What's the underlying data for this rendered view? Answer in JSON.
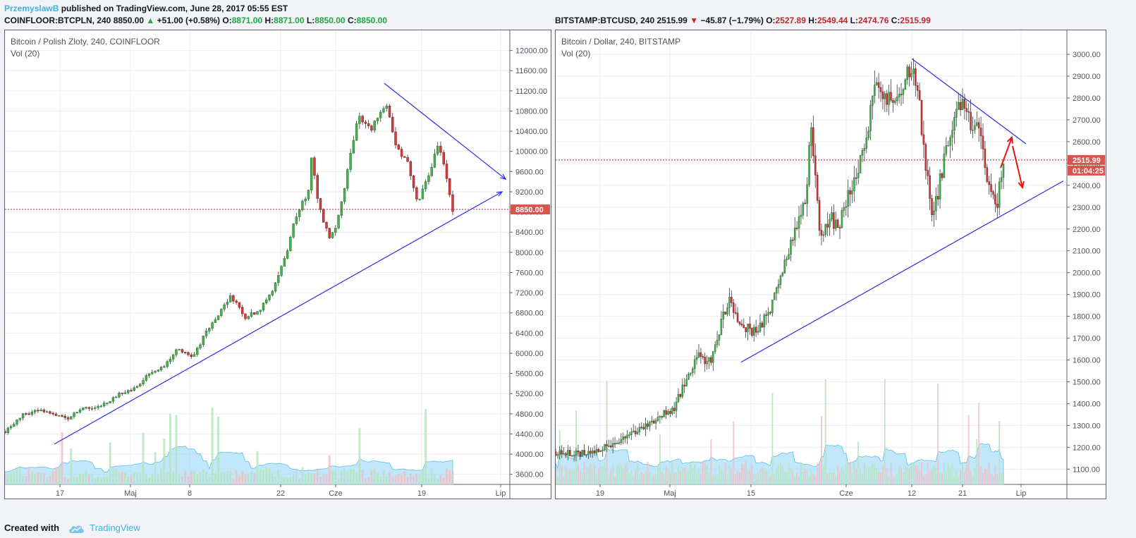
{
  "header": {
    "author": "PrzemyslawB",
    "published": "published on TradingView.com, June 28, 2017 05:55 EST"
  },
  "footer": {
    "created_with": "Created with",
    "brand": "TradingView"
  },
  "colors": {
    "up": "#1ea845",
    "down": "#c1272d",
    "trendline": "#2a2af0",
    "arrow": "#e8140f",
    "volume_area": "#8fd3f5",
    "price_line": "#c1272d"
  },
  "left": {
    "quote": {
      "symbol": "COINFLOOR:BTCPLN, 240",
      "last": "8850.00",
      "direction": "up",
      "change": "+51.00 (+0.58%)",
      "o_label": "O:",
      "o": "8871.00",
      "h_label": "H:",
      "h": "8871.00",
      "l_label": "L:",
      "l": "8850.00",
      "c_label": "C:",
      "c": "8850.00"
    },
    "legend_title": "Bitcoin / Polish Zloty, 240, COINFLOOR",
    "legend_vol": "Vol (20)",
    "price_tag": "8850.00",
    "chart_data": {
      "type": "candlestick",
      "ylim": [
        3400,
        12400
      ],
      "yticks": [
        "12000.00",
        "11600.00",
        "11200.00",
        "10800.00",
        "10400.00",
        "10000.00",
        "9600.00",
        "9200.00",
        "8800.00",
        "8400.00",
        "8000.00",
        "7600.00",
        "7200.00",
        "6800.00",
        "6400.00",
        "6000.00",
        "5600.00",
        "5200.00",
        "4800.00",
        "4400.00",
        "4000.00",
        "3600.00"
      ],
      "xticks": [
        "17",
        "Maj",
        "8",
        "22",
        "Cze",
        "19",
        "Lip"
      ],
      "last_price": 8850,
      "price_path": [
        [
          0,
          4450
        ],
        [
          25,
          4780
        ],
        [
          50,
          4880
        ],
        [
          70,
          4770
        ],
        [
          90,
          4720
        ],
        [
          110,
          4930
        ],
        [
          135,
          4940
        ],
        [
          160,
          5180
        ],
        [
          185,
          5300
        ],
        [
          205,
          5600
        ],
        [
          225,
          5750
        ],
        [
          245,
          6100
        ],
        [
          265,
          5900
        ],
        [
          285,
          6400
        ],
        [
          305,
          6800
        ],
        [
          320,
          7150
        ],
        [
          340,
          6700
        ],
        [
          360,
          6850
        ],
        [
          380,
          7250
        ],
        [
          400,
          8000
        ],
        [
          410,
          8600
        ],
        [
          420,
          8950
        ],
        [
          430,
          9150
        ],
        [
          435,
          9900
        ],
        [
          445,
          8900
        ],
        [
          460,
          8300
        ],
        [
          470,
          8500
        ],
        [
          490,
          9900
        ],
        [
          500,
          10700
        ],
        [
          520,
          10450
        ],
        [
          540,
          11000
        ],
        [
          555,
          10100
        ],
        [
          570,
          9800
        ],
        [
          585,
          9000
        ],
        [
          600,
          9500
        ],
        [
          615,
          10200
        ],
        [
          625,
          9600
        ],
        [
          635,
          8850
        ]
      ],
      "trendlines": [
        [
          [
            70,
            4200
          ],
          [
            705,
            9200
          ]
        ],
        [
          [
            538,
            11350
          ],
          [
            710,
            9450
          ]
        ]
      ]
    }
  },
  "right": {
    "quote": {
      "symbol": "BITSTAMP:BTCUSD, 240",
      "last": "2515.99",
      "direction": "down",
      "change": "−45.87 (−1.79%)",
      "o_label": "O:",
      "o": "2527.89",
      "h_label": "H:",
      "h": "2549.44",
      "l_label": "L:",
      "l": "2474.76",
      "c_label": "C:",
      "c": "2515.99"
    },
    "legend_title": "Bitcoin / Dollar, 240, BITSTAMP",
    "legend_vol": "Vol (20)",
    "price_tag": "2515.99",
    "countdown": "01:04:25",
    "chart_data": {
      "type": "candlestick",
      "ylim": [
        1030,
        3110
      ],
      "yticks": [
        "3000.00",
        "2900.00",
        "2800.00",
        "2700.00",
        "2600.00",
        "2500.00",
        "2400.00",
        "2300.00",
        "2200.00",
        "2100.00",
        "2000.00",
        "1900.00",
        "1800.00",
        "1700.00",
        "1600.00",
        "1500.00",
        "1400.00",
        "1300.00",
        "1200.00",
        "1100.00"
      ],
      "xticks": [
        "19",
        "Maj",
        "15",
        "Cze",
        "12",
        "21",
        "Lip"
      ],
      "last_price": 2515.99,
      "price_path": [
        [
          0,
          1180
        ],
        [
          30,
          1170
        ],
        [
          60,
          1190
        ],
        [
          90,
          1230
        ],
        [
          120,
          1290
        ],
        [
          150,
          1350
        ],
        [
          170,
          1390
        ],
        [
          185,
          1520
        ],
        [
          200,
          1620
        ],
        [
          220,
          1590
        ],
        [
          245,
          1880
        ],
        [
          260,
          1780
        ],
        [
          280,
          1720
        ],
        [
          300,
          1800
        ],
        [
          320,
          1980
        ],
        [
          340,
          2200
        ],
        [
          355,
          2350
        ],
        [
          362,
          2700
        ],
        [
          375,
          2150
        ],
        [
          390,
          2250
        ],
        [
          400,
          2200
        ],
        [
          420,
          2400
        ],
        [
          440,
          2600
        ],
        [
          455,
          2900
        ],
        [
          470,
          2790
        ],
        [
          490,
          2850
        ],
        [
          505,
          2960
        ],
        [
          515,
          2780
        ],
        [
          525,
          2500
        ],
        [
          535,
          2250
        ],
        [
          550,
          2500
        ],
        [
          560,
          2650
        ],
        [
          575,
          2790
        ],
        [
          585,
          2700
        ],
        [
          600,
          2650
        ],
        [
          615,
          2400
        ],
        [
          625,
          2300
        ],
        [
          635,
          2515
        ]
      ],
      "trendlines": [
        [
          [
            263,
            1590
          ],
          [
            720,
            2420
          ]
        ],
        [
          [
            505,
            2980
          ],
          [
            667,
            2590
          ]
        ]
      ],
      "arrows": [
        [
          [
            631,
            2480
          ],
          [
            647,
            2620
          ]
        ],
        [
          [
            648,
            2580
          ],
          [
            662,
            2390
          ]
        ]
      ]
    }
  }
}
